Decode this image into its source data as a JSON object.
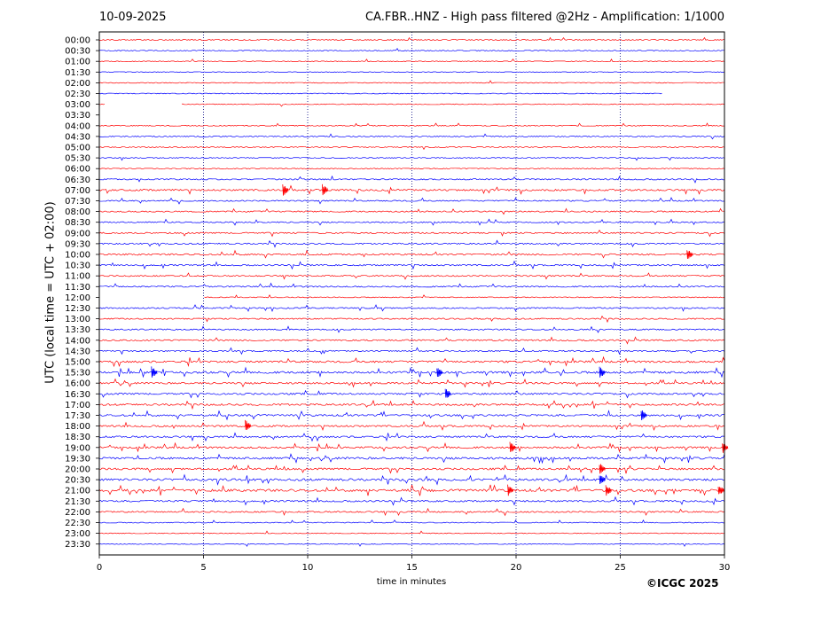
{
  "header": {
    "date": "10-09-2025",
    "title": "CA.FBR..HNZ - High pass filtered @2Hz - Amplification: 1/1000"
  },
  "footer": {
    "copyright": "©ICGC 2025"
  },
  "colors": {
    "red": "#ff0000",
    "blue": "#0000ff",
    "grid": "#000080",
    "axis": "#000000"
  },
  "chart_data": {
    "type": "line",
    "title": "CA.FBR..HNZ - High pass filtered @2Hz - Amplification: 1/1000",
    "xlabel": "time in minutes",
    "ylabel": "UTC (local time = UTC + 02:00)",
    "xlim": [
      0,
      30
    ],
    "xticks": [
      0,
      5,
      10,
      15,
      20,
      25,
      30
    ],
    "grid": "vertical dotted lines at 5-minute ticks",
    "rows": [
      {
        "label": "00:00",
        "color": "red",
        "activity": 0.05,
        "x_end": 30
      },
      {
        "label": "00:30",
        "color": "blue",
        "activity": 0.05,
        "x_end": 30
      },
      {
        "label": "01:00",
        "color": "red",
        "activity": 0.05,
        "x_end": 30
      },
      {
        "label": "01:30",
        "color": "blue",
        "activity": 0.05,
        "x_end": 30
      },
      {
        "label": "02:00",
        "color": "red",
        "activity": 0.05,
        "x_end": 30
      },
      {
        "label": "02:30",
        "color": "blue",
        "activity": 0.05,
        "x_end": 27
      },
      {
        "label": "03:00",
        "color": "red",
        "activity": 0.05,
        "x_end": 30,
        "gap": [
          0.3,
          3.9
        ]
      },
      {
        "label": "03:30",
        "color": "blue",
        "activity": 0.0,
        "x_end": 0
      },
      {
        "label": "04:00",
        "color": "red",
        "activity": 0.1,
        "x_end": 30
      },
      {
        "label": "04:30",
        "color": "blue",
        "activity": 0.15,
        "x_end": 30
      },
      {
        "label": "05:00",
        "color": "red",
        "activity": 0.1,
        "x_end": 30
      },
      {
        "label": "05:30",
        "color": "blue",
        "activity": 0.1,
        "x_end": 30
      },
      {
        "label": "06:00",
        "color": "red",
        "activity": 0.1,
        "x_end": 30
      },
      {
        "label": "06:30",
        "color": "blue",
        "activity": 0.3,
        "x_end": 30
      },
      {
        "label": "07:00",
        "color": "red",
        "activity": 0.5,
        "x_end": 30
      },
      {
        "label": "07:30",
        "color": "blue",
        "activity": 0.25,
        "x_end": 30
      },
      {
        "label": "08:00",
        "color": "red",
        "activity": 0.3,
        "x_end": 30
      },
      {
        "label": "08:30",
        "color": "blue",
        "activity": 0.25,
        "x_end": 30
      },
      {
        "label": "09:00",
        "color": "red",
        "activity": 0.35,
        "x_end": 30
      },
      {
        "label": "09:30",
        "color": "blue",
        "activity": 0.35,
        "x_end": 30
      },
      {
        "label": "10:00",
        "color": "red",
        "activity": 0.45,
        "x_end": 30
      },
      {
        "label": "10:30",
        "color": "blue",
        "activity": 0.4,
        "x_end": 30
      },
      {
        "label": "11:00",
        "color": "red",
        "activity": 0.3,
        "x_end": 30
      },
      {
        "label": "11:30",
        "color": "blue",
        "activity": 0.3,
        "x_end": 30
      },
      {
        "label": "12:00",
        "color": "red",
        "activity": 0.1,
        "x_end": 30,
        "gap": [
          0.0,
          5.0
        ]
      },
      {
        "label": "12:30",
        "color": "blue",
        "activity": 0.3,
        "x_end": 30
      },
      {
        "label": "13:00",
        "color": "red",
        "activity": 0.3,
        "x_end": 30
      },
      {
        "label": "13:30",
        "color": "blue",
        "activity": 0.3,
        "x_end": 30
      },
      {
        "label": "14:00",
        "color": "red",
        "activity": 0.35,
        "x_end": 30
      },
      {
        "label": "14:30",
        "color": "blue",
        "activity": 0.3,
        "x_end": 30
      },
      {
        "label": "15:00",
        "color": "red",
        "activity": 0.6,
        "x_end": 30
      },
      {
        "label": "15:30",
        "color": "blue",
        "activity": 0.7,
        "x_end": 30
      },
      {
        "label": "16:00",
        "color": "red",
        "activity": 0.5,
        "x_end": 30
      },
      {
        "label": "16:30",
        "color": "blue",
        "activity": 0.5,
        "x_end": 30
      },
      {
        "label": "17:00",
        "color": "red",
        "activity": 0.55,
        "x_end": 30
      },
      {
        "label": "17:30",
        "color": "blue",
        "activity": 0.55,
        "x_end": 30
      },
      {
        "label": "18:00",
        "color": "red",
        "activity": 0.5,
        "x_end": 30
      },
      {
        "label": "18:30",
        "color": "blue",
        "activity": 0.5,
        "x_end": 30
      },
      {
        "label": "19:00",
        "color": "red",
        "activity": 0.55,
        "x_end": 30
      },
      {
        "label": "19:30",
        "color": "blue",
        "activity": 0.65,
        "x_end": 30
      },
      {
        "label": "20:00",
        "color": "red",
        "activity": 0.6,
        "x_end": 30
      },
      {
        "label": "20:30",
        "color": "blue",
        "activity": 0.75,
        "x_end": 30
      },
      {
        "label": "21:00",
        "color": "red",
        "activity": 0.85,
        "x_end": 30
      },
      {
        "label": "21:30",
        "color": "blue",
        "activity": 0.45,
        "x_end": 30
      },
      {
        "label": "22:00",
        "color": "red",
        "activity": 0.35,
        "x_end": 30
      },
      {
        "label": "22:30",
        "color": "blue",
        "activity": 0.1,
        "x_end": 30
      },
      {
        "label": "23:00",
        "color": "red",
        "activity": 0.05,
        "x_end": 30
      },
      {
        "label": "23:30",
        "color": "blue",
        "activity": 0.05,
        "x_end": 30
      }
    ],
    "events": [
      {
        "row": "07:00",
        "x": 8.8
      },
      {
        "row": "07:00",
        "x": 10.7
      },
      {
        "row": "10:00",
        "x": 28.2
      },
      {
        "row": "15:30",
        "x": 2.5
      },
      {
        "row": "15:30",
        "x": 16.2
      },
      {
        "row": "15:30",
        "x": 24.0
      },
      {
        "row": "16:30",
        "x": 16.6
      },
      {
        "row": "17:30",
        "x": 26.0
      },
      {
        "row": "18:00",
        "x": 7.0
      },
      {
        "row": "19:00",
        "x": 19.7
      },
      {
        "row": "19:00",
        "x": 29.9
      },
      {
        "row": "20:00",
        "x": 24.0
      },
      {
        "row": "20:30",
        "x": 24.0
      },
      {
        "row": "21:00",
        "x": 19.6
      },
      {
        "row": "21:00",
        "x": 24.3
      },
      {
        "row": "21:00",
        "x": 29.7
      }
    ]
  }
}
